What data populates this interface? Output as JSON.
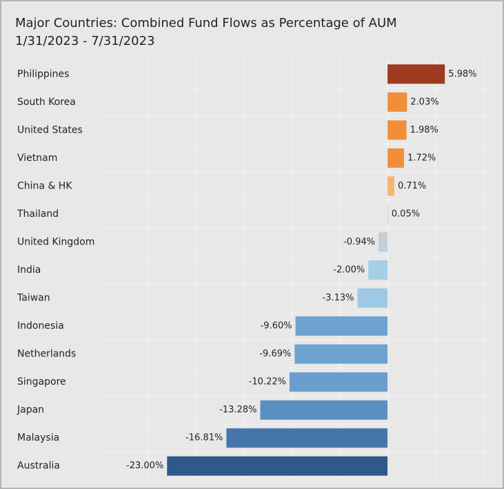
{
  "chart_data": {
    "type": "barh",
    "title": "Major Countries:  Combined Fund Flows as Percentage of AUM",
    "subtitle": "1/31/2023 - 7/31/2023",
    "categories": [
      "Philippines",
      "South Korea",
      "United States",
      "Vietnam",
      "China & HK",
      "Thailand",
      "United Kingdom",
      "India",
      "Taiwan",
      "Indonesia",
      "Netherlands",
      "Singapore",
      "Japan",
      "Malaysia",
      "Australia"
    ],
    "values": [
      5.98,
      2.03,
      1.98,
      1.72,
      0.71,
      0.05,
      -0.94,
      -2.0,
      -3.13,
      -9.6,
      -9.69,
      -10.22,
      -13.28,
      -16.81,
      -23.0
    ],
    "value_labels": [
      "5.98%",
      "2.03%",
      "1.98%",
      "1.72%",
      "0.71%",
      "0.05%",
      "-0.94%",
      "-2.00%",
      "-3.13%",
      "-9.60%",
      "-9.69%",
      "-10.22%",
      "-13.28%",
      "-16.81%",
      "-23.00%"
    ],
    "colors": [
      "#9e3a1f",
      "#f28e3a",
      "#f28e3a",
      "#f28e3a",
      "#f7b56c",
      "#d2cfbf",
      "#c0cfd8",
      "#a5cee7",
      "#9ec9e4",
      "#6ea3d0",
      "#6ea3d0",
      "#6a9ecc",
      "#5b8fc1",
      "#4676a9",
      "#2d5a8a"
    ],
    "xlim": [
      -30,
      11
    ],
    "xticks": [
      -25,
      -20,
      -15,
      -10,
      -5,
      0,
      5,
      10
    ],
    "grid": true
  }
}
